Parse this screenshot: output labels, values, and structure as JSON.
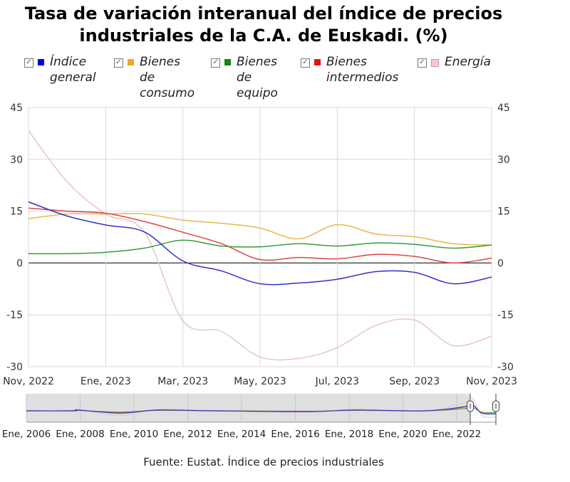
{
  "chart_data": {
    "type": "line",
    "title": "Tasa de variación interanual del índice de precios industriales de la C.A. de Euskadi. (%)",
    "x": [
      "Nov, 2022",
      "Dic, 2022",
      "Ene, 2023",
      "Feb, 2023",
      "Mar, 2023",
      "Abr, 2023",
      "May, 2023",
      "Jun, 2023",
      "Jul, 2023",
      "Ago, 2023",
      "Sep, 2023",
      "Oct, 2023",
      "Nov, 2023"
    ],
    "x_tick_labels": [
      "Nov, 2022",
      "Ene, 2023",
      "Mar, 2023",
      "May, 2023",
      "Jul, 2023",
      "Sep, 2023",
      "Nov, 2023"
    ],
    "y_ticks": [
      45,
      30,
      15,
      0,
      -15,
      -30
    ],
    "ylim": [
      -30,
      45
    ],
    "grid": true,
    "legend_position": "top",
    "series": [
      {
        "name": "Índice general",
        "name_lines": [
          "Índice",
          "general"
        ],
        "color": "#3333cc",
        "swatch": "#0000ee",
        "values": [
          17.7,
          13.6,
          11,
          9,
          0.6,
          -2.3,
          -6,
          -5.8,
          -4.7,
          -2.5,
          -2.7,
          -6,
          -4.1
        ]
      },
      {
        "name": "Bienes de consumo",
        "name_lines": [
          "Bienes",
          "de",
          "consumo"
        ],
        "color": "#e8b84a",
        "swatch": "#f5a623",
        "values": [
          12.8,
          14.2,
          14.2,
          14.2,
          12.4,
          11.5,
          10.1,
          7,
          11.1,
          8.4,
          7.6,
          5.6,
          5.2
        ]
      },
      {
        "name": "Bienes de equipo",
        "name_lines": [
          "Bienes",
          "de",
          "equipo"
        ],
        "color": "#3a9a3a",
        "swatch": "#118811",
        "values": [
          2.7,
          2.7,
          3.1,
          4.3,
          6.6,
          4.9,
          4.7,
          5.6,
          4.9,
          5.8,
          5.4,
          4.3,
          5.2
        ]
      },
      {
        "name": "Bienes intermedios",
        "name_lines": [
          "Bienes",
          "intermedios"
        ],
        "color": "#dd4444",
        "swatch": "#ee1111",
        "values": [
          15.9,
          15,
          14.4,
          12,
          8.9,
          5.6,
          1,
          1.6,
          1.2,
          2.5,
          1.9,
          0,
          1.4
        ]
      },
      {
        "name": "Energía",
        "name_lines": [
          "Energía"
        ],
        "color": "#e8c4cc",
        "swatch": "#f7c6d0",
        "values": [
          38.3,
          23.5,
          14.2,
          9,
          -16.7,
          -19.8,
          -27.2,
          -27.6,
          -24.5,
          -18.1,
          -16.5,
          -23.9,
          -21.2
        ]
      }
    ],
    "navigator": {
      "labels": [
        "Ene, 2006",
        "Ene, 2008",
        "Ene, 2010",
        "Ene, 2012",
        "Ene, 2014",
        "Ene, 2016",
        "Ene, 2018",
        "Ene, 2020",
        "Ene, 2022"
      ]
    }
  },
  "source": "Fuente: Eustat. Índice de precios industriales"
}
